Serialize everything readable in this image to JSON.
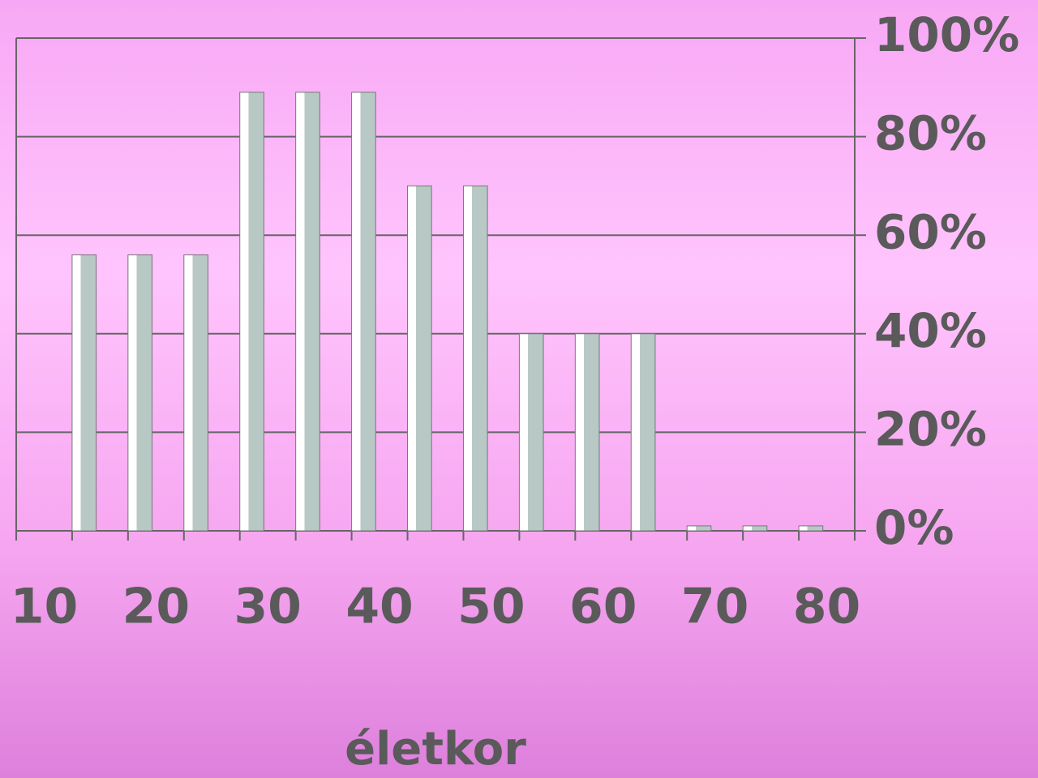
{
  "chart_data": {
    "type": "bar",
    "x_label": "életkor",
    "categories": [
      "10",
      null,
      "20",
      null,
      "30",
      null,
      "40",
      null,
      "50",
      null,
      "60",
      null,
      "70",
      null,
      "80"
    ],
    "values": [
      null,
      56,
      56,
      56,
      89,
      89,
      89,
      70,
      70,
      40,
      40,
      40,
      1,
      1,
      1
    ],
    "color": "#b8c8c5",
    "ylim": [
      0,
      100
    ],
    "yticks": [
      {
        "value": 0,
        "label": "0%"
      },
      {
        "value": 20,
        "label": "20%"
      },
      {
        "value": 40,
        "label": "40%"
      },
      {
        "value": 60,
        "label": "60%"
      },
      {
        "value": 80,
        "label": "80%"
      },
      {
        "value": 100,
        "label": "100%"
      }
    ],
    "grid": true
  }
}
